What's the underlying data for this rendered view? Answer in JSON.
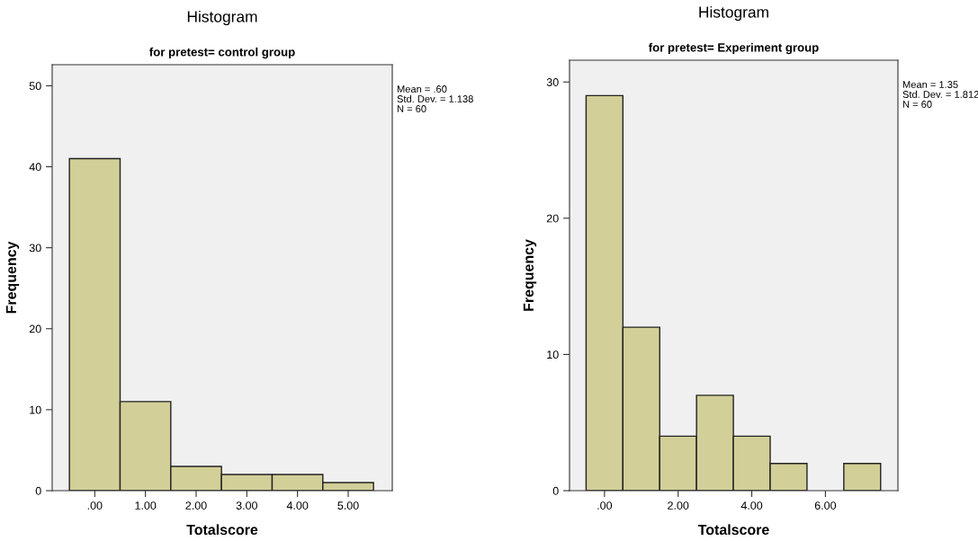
{
  "chart_data": [
    {
      "type": "histogram",
      "title": "Histogram",
      "subtitle": "for pretest= control group",
      "xlabel": "Totalscore",
      "ylabel": "Frequency",
      "bins": [
        -0.5,
        0.5,
        1.5,
        2.5,
        3.5,
        4.5,
        5.5
      ],
      "values": [
        41,
        11,
        3,
        2,
        2,
        1
      ],
      "color": "#d3cf98",
      "xlim": [
        -0.84,
        5.87
      ],
      "ylim": [
        0,
        52.6
      ],
      "xticks": [
        {
          "value": 0,
          "label": ".00"
        },
        {
          "value": 1,
          "label": "1.00"
        },
        {
          "value": 2,
          "label": "2.00"
        },
        {
          "value": 3,
          "label": "3.00"
        },
        {
          "value": 4,
          "label": "4.00"
        },
        {
          "value": 5,
          "label": "5.00"
        }
      ],
      "yticks": [
        0,
        10,
        20,
        30,
        40,
        50
      ],
      "grid": false,
      "annotations": [
        "Mean = .60",
        "Std. Dev. = 1.138",
        "N = 60"
      ]
    },
    {
      "type": "histogram",
      "title": "Histogram",
      "subtitle": "for pretest= Experiment group",
      "xlabel": "Totalscore",
      "ylabel": "Frequency",
      "bins": [
        -0.5,
        0.5,
        1.5,
        2.5,
        3.5,
        4.5,
        5.5,
        6.5,
        7.5
      ],
      "values": [
        29,
        12,
        4,
        7,
        4,
        2,
        0,
        2
      ],
      "color": "#d3cf98",
      "xlim": [
        -0.95,
        7.97
      ],
      "ylim": [
        0,
        31.6
      ],
      "xticks": [
        {
          "value": 0,
          "label": ".00"
        },
        {
          "value": 2,
          "label": "2.00"
        },
        {
          "value": 4,
          "label": "4.00"
        },
        {
          "value": 6,
          "label": "6.00"
        }
      ],
      "yticks": [
        0,
        10,
        20,
        30
      ],
      "grid": false,
      "annotations": [
        "Mean = 1.35",
        "Std. Dev. = 1.812",
        "N = 60"
      ]
    }
  ]
}
